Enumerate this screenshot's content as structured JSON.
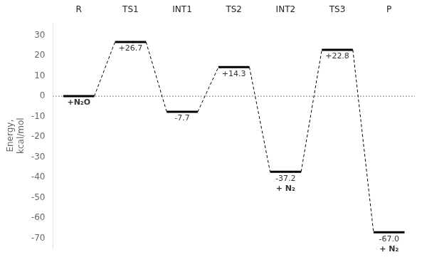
{
  "chart_data": {
    "type": "energy_levels",
    "categories": [
      "R",
      "TS1",
      "INT1",
      "TS2",
      "INT2",
      "TS3",
      "P"
    ],
    "values": [
      0.0,
      26.7,
      -7.7,
      14.3,
      -37.2,
      22.8,
      -67.0
    ],
    "value_labels": [
      null,
      "+26.7",
      "-7.7",
      "+14.3",
      "-37.2",
      "+22.8",
      "-67.0"
    ],
    "data_labels": true,
    "color": "#000000",
    "line_style": "dashed",
    "ylabel": "Energy,\nkcal/mol",
    "ylim": [
      -75,
      36
    ],
    "yticks": [
      -70,
      -60,
      -50,
      -40,
      -30,
      -20,
      -10,
      0,
      10,
      20,
      30
    ],
    "grid": false,
    "zero_line": 0,
    "annotations": [
      {
        "text": "+N₂O",
        "x": "R"
      },
      {
        "text": "+ N₂",
        "x": "INT2"
      },
      {
        "text": "+ N₂",
        "x": "P"
      }
    ]
  }
}
